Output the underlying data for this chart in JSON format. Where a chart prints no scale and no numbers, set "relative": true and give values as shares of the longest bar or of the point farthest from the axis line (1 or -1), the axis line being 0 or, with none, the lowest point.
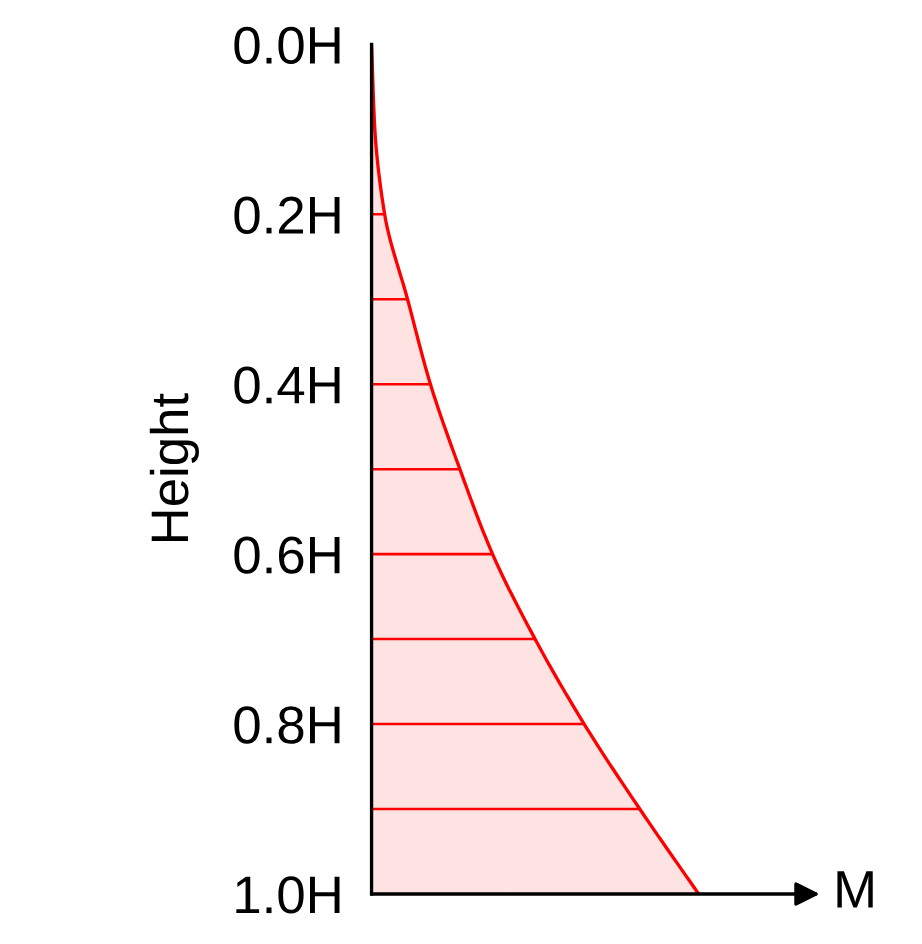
{
  "chart_data": {
    "type": "area",
    "orientation": "horizontal",
    "relative": true,
    "ylabel": "Height",
    "xlabel": "M",
    "x": [
      0.0,
      0.1,
      0.2,
      0.3,
      0.4,
      0.5,
      0.6,
      0.7,
      0.8,
      0.9,
      1.0
    ],
    "series": [
      {
        "color": "#ff0000",
        "values": [
          0,
          0.01,
          0.04,
          0.11,
          0.18,
          0.27,
          0.37,
          0.5,
          0.65,
          0.82,
          1
        ]
      },
      {
        "type": "bar",
        "color": "#ff0000",
        "x": [
          0.2,
          0.3,
          0.4,
          0.5,
          0.6,
          0.7,
          0.8,
          0.9
        ],
        "values": [
          0.04,
          0.11,
          0.18,
          0.27,
          0.37,
          0.5,
          0.65,
          0.82
        ]
      }
    ],
    "ylim": [
      1.0,
      0.0
    ],
    "yticks": [
      {
        "value": 0.0,
        "label": "0.0H"
      },
      {
        "value": 0.2,
        "label": "0.2H"
      },
      {
        "value": 0.4,
        "label": "0.4H"
      },
      {
        "value": 0.6,
        "label": "0.6H"
      },
      {
        "value": 0.8,
        "label": "0.8H"
      },
      {
        "value": 1.0,
        "label": "1.0H"
      }
    ],
    "grid": false
  }
}
